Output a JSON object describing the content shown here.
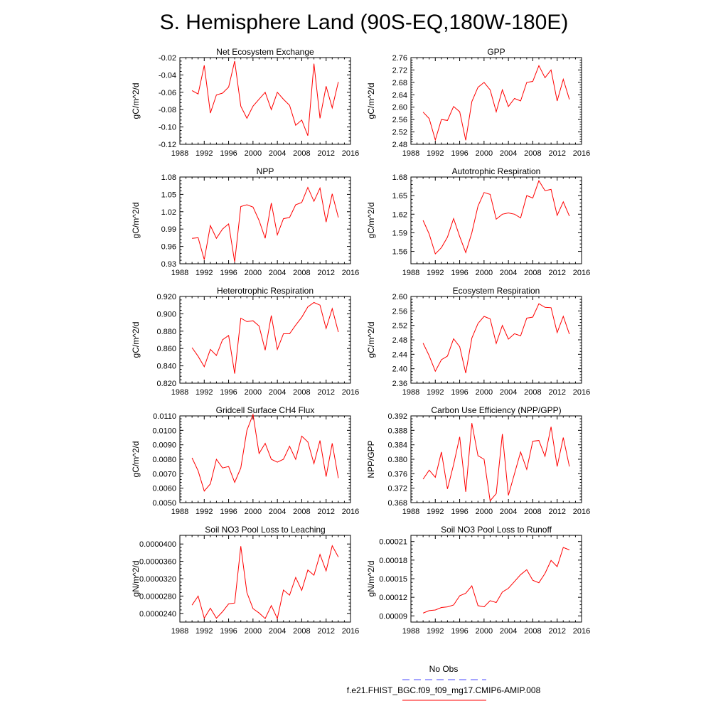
{
  "title": "S. Hemisphere Land (90S-EQ,180W-180E)",
  "colors": {
    "model_line": "#ff0000",
    "obs_line": "#4a4aff",
    "axis": "#000000"
  },
  "legend": {
    "obs_label": "No Obs",
    "model_label": "f.e21.FHIST_BGC.f09_f09_mg17.CMIP6-AMIP.008"
  },
  "chart_data": [
    {
      "type": "line",
      "title": "Net Ecosystem Exchange",
      "ylabel": "gC/m^2/d",
      "xlim": [
        1988,
        2016
      ],
      "ylim": [
        -0.12,
        -0.02
      ],
      "xticks": [
        1988,
        1992,
        1996,
        2000,
        2004,
        2008,
        2012,
        2016
      ],
      "xtick_labels": [
        "1988",
        "1992",
        "1996",
        "2000",
        "2004",
        "2008",
        "2012",
        "2016"
      ],
      "yticks": [
        -0.12,
        -0.1,
        -0.08,
        -0.06,
        -0.04,
        -0.02
      ],
      "ytick_labels": [
        "-0.12",
        "-0.10",
        "-0.08",
        "-0.06",
        "-0.04",
        "-0.02"
      ],
      "x": [
        1990,
        1991,
        1992,
        1993,
        1994,
        1995,
        1996,
        1997,
        1998,
        1999,
        2000,
        2001,
        2002,
        2003,
        2004,
        2005,
        2006,
        2007,
        2008,
        2009,
        2010,
        2011,
        2012,
        2013,
        2014
      ],
      "series": [
        {
          "name": "f.e21.FHIST_BGC.f09_f09_mg17.CMIP6-AMIP.008",
          "values": [
            -0.058,
            -0.062,
            -0.029,
            -0.084,
            -0.063,
            -0.061,
            -0.054,
            -0.024,
            -0.076,
            -0.09,
            -0.076,
            -0.068,
            -0.06,
            -0.08,
            -0.06,
            -0.068,
            -0.075,
            -0.098,
            -0.092,
            -0.11,
            -0.027,
            -0.09,
            -0.053,
            -0.078,
            -0.048
          ]
        }
      ]
    },
    {
      "type": "line",
      "title": "GPP",
      "ylabel": "gC/m^2/d",
      "xlim": [
        1988,
        2016
      ],
      "ylim": [
        2.48,
        2.76
      ],
      "xticks": [
        1988,
        1992,
        1996,
        2000,
        2004,
        2008,
        2012,
        2016
      ],
      "xtick_labels": [
        "1988",
        "1992",
        "1996",
        "2000",
        "2004",
        "2008",
        "2012",
        "2016"
      ],
      "yticks": [
        2.48,
        2.52,
        2.56,
        2.6,
        2.64,
        2.68,
        2.72,
        2.76
      ],
      "ytick_labels": [
        "2.48",
        "2.52",
        "2.56",
        "2.60",
        "2.64",
        "2.68",
        "2.72",
        "2.76"
      ],
      "x": [
        1990,
        1991,
        1992,
        1993,
        1994,
        1995,
        1996,
        1997,
        1998,
        1999,
        2000,
        2001,
        2002,
        2003,
        2004,
        2005,
        2006,
        2007,
        2008,
        2009,
        2010,
        2011,
        2012,
        2013,
        2014
      ],
      "series": [
        {
          "name": "f.e21.FHIST_BGC.f09_f09_mg17.CMIP6-AMIP.008",
          "values": [
            2.584,
            2.563,
            2.494,
            2.56,
            2.557,
            2.602,
            2.585,
            2.493,
            2.618,
            2.664,
            2.68,
            2.656,
            2.585,
            2.656,
            2.602,
            2.628,
            2.62,
            2.68,
            2.683,
            2.734,
            2.695,
            2.72,
            2.62,
            2.69,
            2.625
          ]
        }
      ]
    },
    {
      "type": "line",
      "title": "NPP",
      "ylabel": "gC/m^2/d",
      "xlim": [
        1988,
        2016
      ],
      "ylim": [
        0.93,
        1.08
      ],
      "xticks": [
        1988,
        1992,
        1996,
        2000,
        2004,
        2008,
        2012,
        2016
      ],
      "xtick_labels": [
        "1988",
        "1992",
        "1996",
        "2000",
        "2004",
        "2008",
        "2012",
        "2016"
      ],
      "yticks": [
        0.93,
        0.96,
        0.99,
        1.02,
        1.05,
        1.08
      ],
      "ytick_labels": [
        "0.93",
        "0.96",
        "0.99",
        "1.02",
        "1.05",
        "1.08"
      ],
      "x": [
        1990,
        1991,
        1992,
        1993,
        1994,
        1995,
        1996,
        1997,
        1998,
        1999,
        2000,
        2001,
        2002,
        2003,
        2004,
        2005,
        2006,
        2007,
        2008,
        2009,
        2010,
        2011,
        2012,
        2013,
        2014
      ],
      "series": [
        {
          "name": "f.e21.FHIST_BGC.f09_f09_mg17.CMIP6-AMIP.008",
          "values": [
            0.974,
            0.975,
            0.937,
            0.996,
            0.974,
            0.99,
            0.999,
            0.933,
            1.029,
            1.032,
            1.028,
            1.005,
            0.974,
            1.035,
            0.98,
            1.008,
            1.01,
            1.032,
            1.036,
            1.062,
            1.038,
            1.061,
            1.002,
            1.051,
            1.01
          ]
        }
      ]
    },
    {
      "type": "line",
      "title": "Autotrophic Respiration",
      "ylabel": "gC/m^2/d",
      "xlim": [
        1988,
        2016
      ],
      "ylim": [
        1.54,
        1.68
      ],
      "xticks": [
        1988,
        1992,
        1996,
        2000,
        2004,
        2008,
        2012,
        2016
      ],
      "xtick_labels": [
        "1988",
        "1992",
        "1996",
        "2000",
        "2004",
        "2008",
        "2012",
        "2016"
      ],
      "yticks": [
        1.56,
        1.59,
        1.62,
        1.65,
        1.68
      ],
      "ytick_labels": [
        "1.56",
        "1.59",
        "1.62",
        "1.65",
        "1.68"
      ],
      "x": [
        1990,
        1991,
        1992,
        1993,
        1994,
        1995,
        1996,
        1997,
        1998,
        1999,
        2000,
        2001,
        2002,
        2003,
        2004,
        2005,
        2006,
        2007,
        2008,
        2009,
        2010,
        2011,
        2012,
        2013,
        2014
      ],
      "series": [
        {
          "name": "f.e21.FHIST_BGC.f09_f09_mg17.CMIP6-AMIP.008",
          "values": [
            1.61,
            1.588,
            1.556,
            1.566,
            1.583,
            1.613,
            1.584,
            1.558,
            1.59,
            1.633,
            1.655,
            1.652,
            1.612,
            1.62,
            1.622,
            1.62,
            1.614,
            1.65,
            1.646,
            1.674,
            1.658,
            1.66,
            1.618,
            1.64,
            1.617
          ]
        }
      ]
    },
    {
      "type": "line",
      "title": "Heterotrophic Respiration",
      "ylabel": "gC/m^2/d",
      "xlim": [
        1988,
        2016
      ],
      "ylim": [
        0.82,
        0.92
      ],
      "xticks": [
        1988,
        1992,
        1996,
        2000,
        2004,
        2008,
        2012,
        2016
      ],
      "xtick_labels": [
        "1988",
        "1992",
        "1996",
        "2000",
        "2004",
        "2008",
        "2012",
        "2016"
      ],
      "yticks": [
        0.82,
        0.84,
        0.86,
        0.88,
        0.9,
        0.92
      ],
      "ytick_labels": [
        "0.820",
        "0.840",
        "0.860",
        "0.880",
        "0.900",
        "0.920"
      ],
      "x": [
        1990,
        1991,
        1992,
        1993,
        1994,
        1995,
        1996,
        1997,
        1998,
        1999,
        2000,
        2001,
        2002,
        2003,
        2004,
        2005,
        2006,
        2007,
        2008,
        2009,
        2010,
        2011,
        2012,
        2013,
        2014
      ],
      "series": [
        {
          "name": "f.e21.FHIST_BGC.f09_f09_mg17.CMIP6-AMIP.008",
          "values": [
            0.861,
            0.851,
            0.839,
            0.859,
            0.852,
            0.87,
            0.875,
            0.831,
            0.895,
            0.891,
            0.892,
            0.886,
            0.858,
            0.898,
            0.859,
            0.877,
            0.877,
            0.887,
            0.896,
            0.908,
            0.913,
            0.91,
            0.883,
            0.906,
            0.879
          ]
        }
      ]
    },
    {
      "type": "line",
      "title": "Ecosystem Respiration",
      "ylabel": "gC/m^2/d",
      "xlim": [
        1988,
        2016
      ],
      "ylim": [
        2.36,
        2.6
      ],
      "xticks": [
        1988,
        1992,
        1996,
        2000,
        2004,
        2008,
        2012,
        2016
      ],
      "xtick_labels": [
        "1988",
        "1992",
        "1996",
        "2000",
        "2004",
        "2008",
        "2012",
        "2016"
      ],
      "yticks": [
        2.36,
        2.4,
        2.44,
        2.48,
        2.52,
        2.56,
        2.6
      ],
      "ytick_labels": [
        "2.36",
        "2.40",
        "2.44",
        "2.48",
        "2.52",
        "2.56",
        "2.60"
      ],
      "x": [
        1990,
        1991,
        1992,
        1993,
        1994,
        1995,
        1996,
        1997,
        1998,
        1999,
        2000,
        2001,
        2002,
        2003,
        2004,
        2005,
        2006,
        2007,
        2008,
        2009,
        2010,
        2011,
        2012,
        2013,
        2014
      ],
      "series": [
        {
          "name": "f.e21.FHIST_BGC.f09_f09_mg17.CMIP6-AMIP.008",
          "values": [
            2.471,
            2.436,
            2.393,
            2.425,
            2.435,
            2.483,
            2.461,
            2.388,
            2.485,
            2.525,
            2.545,
            2.538,
            2.47,
            2.52,
            2.482,
            2.497,
            2.491,
            2.54,
            2.543,
            2.58,
            2.57,
            2.569,
            2.5,
            2.545,
            2.496
          ]
        }
      ]
    },
    {
      "type": "line",
      "title": "Gridcell Surface CH4 Flux",
      "ylabel": "gC/m^2/d",
      "xlim": [
        1988,
        2016
      ],
      "ylim": [
        0.005,
        0.011
      ],
      "xticks": [
        1988,
        1992,
        1996,
        2000,
        2004,
        2008,
        2012,
        2016
      ],
      "xtick_labels": [
        "1988",
        "1992",
        "1996",
        "2000",
        "2004",
        "2008",
        "2012",
        "2016"
      ],
      "yticks": [
        0.005,
        0.006,
        0.007,
        0.008,
        0.009,
        0.01,
        0.011
      ],
      "ytick_labels": [
        "0.0050",
        "0.0060",
        "0.0070",
        "0.0080",
        "0.0090",
        "0.0100",
        "0.0110"
      ],
      "x": [
        1990,
        1991,
        1992,
        1993,
        1994,
        1995,
        1996,
        1997,
        1998,
        1999,
        2000,
        2001,
        2002,
        2003,
        2004,
        2005,
        2006,
        2007,
        2008,
        2009,
        2010,
        2011,
        2012,
        2013,
        2014
      ],
      "series": [
        {
          "name": "f.e21.FHIST_BGC.f09_f09_mg17.CMIP6-AMIP.008",
          "values": [
            0.0081,
            0.0072,
            0.0058,
            0.0063,
            0.008,
            0.0074,
            0.0075,
            0.0064,
            0.0074,
            0.01,
            0.0111,
            0.0084,
            0.0091,
            0.008,
            0.0078,
            0.008,
            0.0089,
            0.008,
            0.0096,
            0.0092,
            0.0077,
            0.0093,
            0.0068,
            0.0091,
            0.0067
          ]
        }
      ]
    },
    {
      "type": "line",
      "title": "Carbon Use Efficiency (NPP/GPP)",
      "ylabel": "NPP/GPP",
      "xlim": [
        1988,
        2016
      ],
      "ylim": [
        0.368,
        0.392
      ],
      "xticks": [
        1988,
        1992,
        1996,
        2000,
        2004,
        2008,
        2012,
        2016
      ],
      "xtick_labels": [
        "1988",
        "1992",
        "1996",
        "2000",
        "2004",
        "2008",
        "2012",
        "2016"
      ],
      "yticks": [
        0.368,
        0.372,
        0.376,
        0.38,
        0.384,
        0.388,
        0.392
      ],
      "ytick_labels": [
        "0.368",
        "0.372",
        "0.376",
        "0.380",
        "0.384",
        "0.388",
        "0.392"
      ],
      "x": [
        1990,
        1991,
        1992,
        1993,
        1994,
        1995,
        1996,
        1997,
        1998,
        1999,
        2000,
        2001,
        2002,
        2003,
        2004,
        2005,
        2006,
        2007,
        2008,
        2009,
        2010,
        2011,
        2012,
        2013,
        2014
      ],
      "series": [
        {
          "name": "f.e21.FHIST_BGC.f09_f09_mg17.CMIP6-AMIP.008",
          "values": [
            0.3745,
            0.377,
            0.375,
            0.382,
            0.3718,
            0.3785,
            0.3862,
            0.371,
            0.39,
            0.381,
            0.38,
            0.3685,
            0.3705,
            0.387,
            0.37,
            0.376,
            0.382,
            0.3772,
            0.385,
            0.3852,
            0.3808,
            0.389,
            0.378,
            0.386,
            0.378
          ]
        }
      ]
    },
    {
      "type": "line",
      "title": "Soil NO3 Pool Loss to Leaching",
      "ylabel": "gN/m^2/d",
      "xlim": [
        1988,
        2016
      ],
      "ylim": [
        2.2e-05,
        4.2e-05
      ],
      "xticks": [
        1988,
        1992,
        1996,
        2000,
        2004,
        2008,
        2012,
        2016
      ],
      "xtick_labels": [
        "1988",
        "1992",
        "1996",
        "2000",
        "2004",
        "2008",
        "2012",
        "2016"
      ],
      "yticks": [
        2.4e-05,
        2.8e-05,
        3.2e-05,
        3.6e-05,
        4e-05
      ],
      "ytick_labels": [
        "0.0000240",
        "0.0000280",
        "0.0000320",
        "0.0000360",
        "0.0000400"
      ],
      "x": [
        1990,
        1991,
        1992,
        1993,
        1994,
        1995,
        1996,
        1997,
        1998,
        1999,
        2000,
        2001,
        2002,
        2003,
        2004,
        2005,
        2006,
        2007,
        2008,
        2009,
        2010,
        2011,
        2012,
        2013,
        2014
      ],
      "series": [
        {
          "name": "f.e21.FHIST_BGC.f09_f09_mg17.CMIP6-AMIP.008",
          "values": [
            2.59e-05,
            2.8e-05,
            2.29e-05,
            2.52e-05,
            2.29e-05,
            2.44e-05,
            2.62e-05,
            2.64e-05,
            3.95e-05,
            2.88e-05,
            2.51e-05,
            2.41e-05,
            2.28e-05,
            2.58e-05,
            2.28e-05,
            2.94e-05,
            2.82e-05,
            3.23e-05,
            2.93e-05,
            3.4e-05,
            3.28e-05,
            3.76e-05,
            3.38e-05,
            3.96e-05,
            3.7e-05
          ]
        }
      ]
    },
    {
      "type": "line",
      "title": "Soil NO3 Pool Loss to Runoff",
      "ylabel": "gN/m^2/d",
      "xlim": [
        1988,
        2016
      ],
      "ylim": [
        8e-05,
        0.00022
      ],
      "xticks": [
        1988,
        1992,
        1996,
        2000,
        2004,
        2008,
        2012,
        2016
      ],
      "xtick_labels": [
        "1988",
        "1992",
        "1996",
        "2000",
        "2004",
        "2008",
        "2012",
        "2016"
      ],
      "yticks": [
        9e-05,
        0.00012,
        0.00015,
        0.00018,
        0.00021
      ],
      "ytick_labels": [
        "0.00009",
        "0.00012",
        "0.00015",
        "0.00018",
        "0.00021"
      ],
      "x": [
        1990,
        1991,
        1992,
        1993,
        1994,
        1995,
        1996,
        1997,
        1998,
        1999,
        2000,
        2001,
        2002,
        2003,
        2004,
        2005,
        2006,
        2007,
        2008,
        2009,
        2010,
        2011,
        2012,
        2013,
        2014
      ],
      "series": [
        {
          "name": "f.e21.FHIST_BGC.f09_f09_mg17.CMIP6-AMIP.008",
          "values": [
            9.45e-05,
            9.85e-05,
            9.95e-05,
            0.0001035,
            0.0001045,
            0.0001075,
            0.0001225,
            0.0001265,
            0.0001385,
            0.0001065,
            0.0001045,
            0.0001145,
            0.0001115,
            0.0001285,
            0.0001345,
            0.0001455,
            0.0001565,
            0.0001645,
            0.0001475,
            0.0001435,
            0.0001585,
            0.0001795,
            0.0001695,
            0.0002005,
            0.0001965
          ]
        }
      ]
    }
  ]
}
